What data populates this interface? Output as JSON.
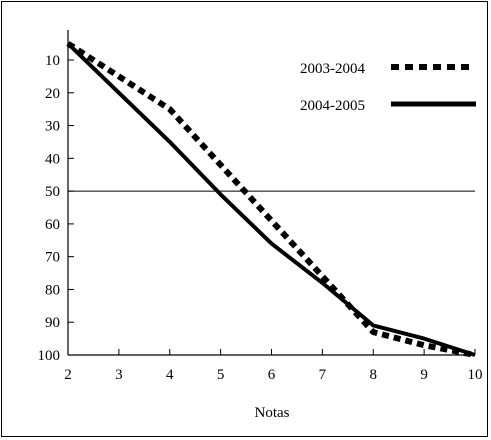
{
  "chart_data": {
    "type": "line",
    "xlabel": "Notas",
    "ylabel": "",
    "title": "",
    "x": [
      2,
      3,
      4,
      5,
      6,
      7,
      8,
      9,
      10
    ],
    "xlim": [
      2,
      10
    ],
    "ylim": [
      0,
      100
    ],
    "y_inverted": true,
    "yticks": [
      10,
      20,
      30,
      40,
      50,
      60,
      70,
      80,
      90,
      100
    ],
    "reference_line": 50,
    "series": [
      {
        "name": "2003-2004",
        "style": "dotted",
        "values": [
          5,
          15,
          25,
          42,
          59,
          76,
          93,
          97,
          100
        ]
      },
      {
        "name": "2004-2005",
        "style": "solid",
        "values": [
          5,
          20,
          35,
          51,
          66,
          78,
          91,
          95,
          100
        ]
      }
    ]
  },
  "colors": {
    "line": "#000000",
    "background": "#ffffff"
  }
}
